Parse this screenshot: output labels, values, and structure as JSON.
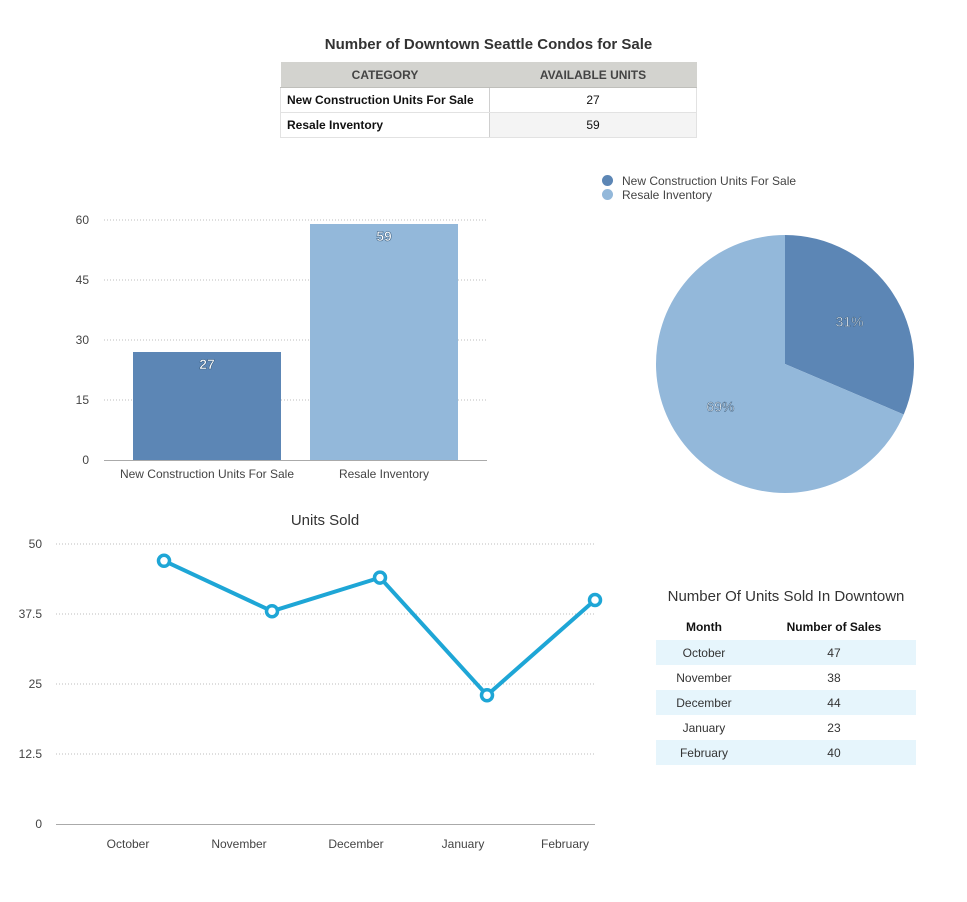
{
  "colors": {
    "series_dark": "#5c86b5",
    "series_light": "#93b8da",
    "line": "#1ea6d6",
    "table_header": "#d3d3cf",
    "stripe": "#e6f5fc"
  },
  "top_table": {
    "title": "Number of Downtown Seattle Condos for Sale",
    "headers": [
      "CATEGORY",
      "AVAILABLE UNITS"
    ],
    "rows": [
      {
        "category": "New Construction Units For Sale",
        "units": "27"
      },
      {
        "category": "Resale Inventory",
        "units": "59"
      }
    ]
  },
  "sold_table": {
    "title": "Number Of Units Sold In Downtown",
    "headers": [
      "Month",
      "Number of Sales"
    ],
    "rows": [
      {
        "month": "October",
        "sales": "47"
      },
      {
        "month": "November",
        "sales": "38"
      },
      {
        "month": "December",
        "sales": "44"
      },
      {
        "month": "January",
        "sales": "23"
      },
      {
        "month": "February",
        "sales": "40"
      }
    ]
  },
  "chart_data": [
    {
      "type": "bar",
      "title": "",
      "categories": [
        "New Construction Units For Sale",
        "Resale Inventory"
      ],
      "values": [
        27,
        59
      ],
      "data_labels": [
        "27",
        "59"
      ],
      "ylim": [
        0,
        60
      ],
      "yticks": [
        0,
        15,
        30,
        45,
        60
      ],
      "ytick_labels": [
        "0",
        "15",
        "30",
        "45",
        "60"
      ],
      "xlabel": "",
      "ylabel": "",
      "grid": true
    },
    {
      "type": "pie",
      "title": "",
      "labels": [
        "New Construction Units For Sale",
        "Resale Inventory"
      ],
      "values": [
        27,
        59
      ],
      "percent_labels": [
        "31%",
        "69%"
      ],
      "legend": "top"
    },
    {
      "type": "line",
      "title": "Units Sold",
      "categories": [
        "October",
        "November",
        "December",
        "January",
        "February"
      ],
      "series": [
        {
          "name": "Number of Sales",
          "values": [
            47,
            38,
            44,
            23,
            40
          ]
        }
      ],
      "ylim": [
        0,
        50
      ],
      "yticks": [
        0,
        12.5,
        25,
        37.5,
        50
      ],
      "ytick_labels": [
        "0",
        "12.5",
        "25",
        "37.5",
        "50"
      ],
      "xlabel": "",
      "ylabel": "",
      "grid": true
    }
  ]
}
